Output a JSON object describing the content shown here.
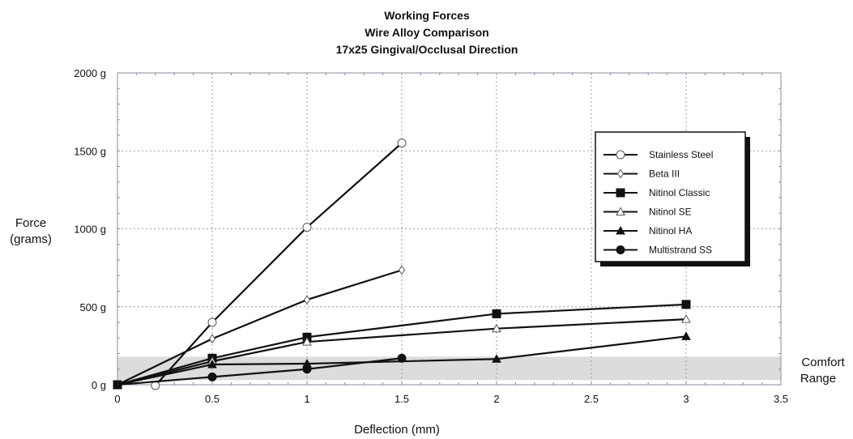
{
  "chart_data": {
    "type": "line",
    "title": [
      "Working Forces",
      "Wire Alloy Comparison",
      "17x25 Gingival/Occlusal Direction"
    ],
    "xlabel": "Deflection (mm)",
    "ylabel": [
      "Force",
      "(grams)"
    ],
    "xlim": [
      0,
      3.5
    ],
    "ylim": [
      0,
      2000
    ],
    "x_ticks": [
      0,
      0.5,
      1,
      1.5,
      2,
      2.5,
      3,
      3.5
    ],
    "x_tick_labels": [
      "0",
      "0.5",
      "1",
      "1.5",
      "2",
      "2.5",
      "3",
      "3.5"
    ],
    "y_ticks": [
      0,
      500,
      1000,
      1500,
      2000
    ],
    "y_tick_labels": [
      "0 g",
      "500 g",
      "1000 g",
      "1500 g",
      "2000 g"
    ],
    "grid": true,
    "grid_style": "dotted",
    "legend_position": "right",
    "comfort_range": {
      "label": [
        "Comfort",
        "Range"
      ],
      "y_from": 30,
      "y_to": 180,
      "color": "#dcdcdc"
    },
    "series": [
      {
        "name": "Stainless Steel",
        "marker": "circle-open",
        "points": [
          [
            0.2,
            -5
          ],
          [
            0.5,
            400
          ],
          [
            1,
            1010
          ],
          [
            1.5,
            1550
          ]
        ]
      },
      {
        "name": "Beta III",
        "marker": "diamond-open",
        "points": [
          [
            0,
            0
          ],
          [
            0.5,
            295
          ],
          [
            1,
            545
          ],
          [
            1.5,
            735
          ]
        ]
      },
      {
        "name": "Nitinol Classic",
        "marker": "square-filled",
        "points": [
          [
            0,
            0
          ],
          [
            0.5,
            170
          ],
          [
            1,
            305
          ],
          [
            2,
            455
          ],
          [
            3,
            515
          ]
        ]
      },
      {
        "name": "Nitinol SE",
        "marker": "triangle-open",
        "points": [
          [
            0,
            0
          ],
          [
            0.5,
            150
          ],
          [
            1,
            275
          ],
          [
            2,
            360
          ],
          [
            3,
            420
          ]
        ]
      },
      {
        "name": "Nitinol HA",
        "marker": "triangle-filled",
        "points": [
          [
            0,
            0
          ],
          [
            0.5,
            130
          ],
          [
            1,
            135
          ],
          [
            2,
            165
          ],
          [
            3,
            310
          ]
        ]
      },
      {
        "name": "Multistrand SS",
        "marker": "circle-filled",
        "points": [
          [
            0,
            0
          ],
          [
            0.5,
            50
          ],
          [
            1,
            100
          ],
          [
            1.5,
            170
          ]
        ]
      }
    ],
    "colors": {
      "line": "#111111",
      "grid": "#9a9ab0",
      "frame": "#8a8aa8",
      "background": "#ffffff"
    }
  }
}
